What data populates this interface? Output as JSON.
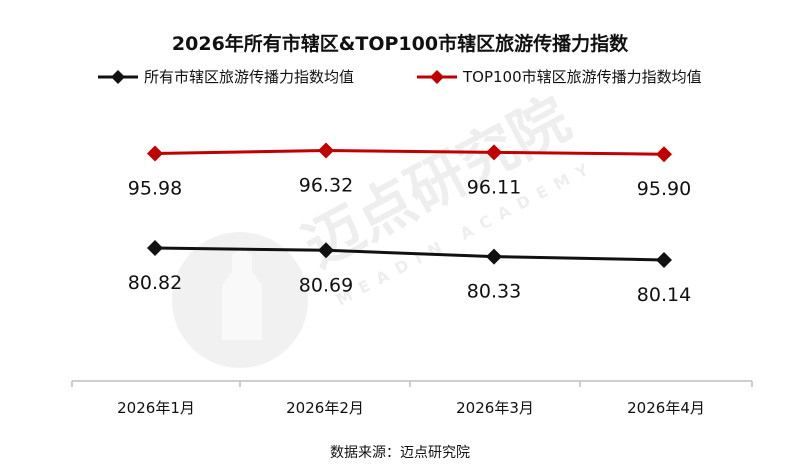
{
  "source_text": "数据来源：迈点研究院",
  "watermark": {
    "brand": "迈点研究院",
    "sub": "MEADIN ACADEMY"
  },
  "colors": {
    "series_all": "#111111",
    "series_top100": "#c00000",
    "axis": "#bfbfbf"
  },
  "chart_data": {
    "type": "line",
    "title": "2026年所有市辖区&TOP100市辖区旅游传播力指数",
    "categories": [
      "2026年1月",
      "2026年2月",
      "2026年3月",
      "2026年4月"
    ],
    "series": [
      {
        "name": "所有市辖区旅游传播力指数均值",
        "values": [
          80.82,
          80.69,
          80.33,
          80.14
        ],
        "color": "#111111",
        "marker": "diamond"
      },
      {
        "name": "TOP100市辖区旅游传播力指数均值",
        "values": [
          95.98,
          96.32,
          96.11,
          95.9
        ],
        "color": "#c00000",
        "marker": "diamond"
      }
    ],
    "value_labels": [
      [
        "80.82",
        "80.69",
        "80.33",
        "80.14"
      ],
      [
        "95.98",
        "96.32",
        "96.11",
        "95.90"
      ]
    ],
    "legend_position": "top",
    "grid": false,
    "y_axis_visible": false
  }
}
